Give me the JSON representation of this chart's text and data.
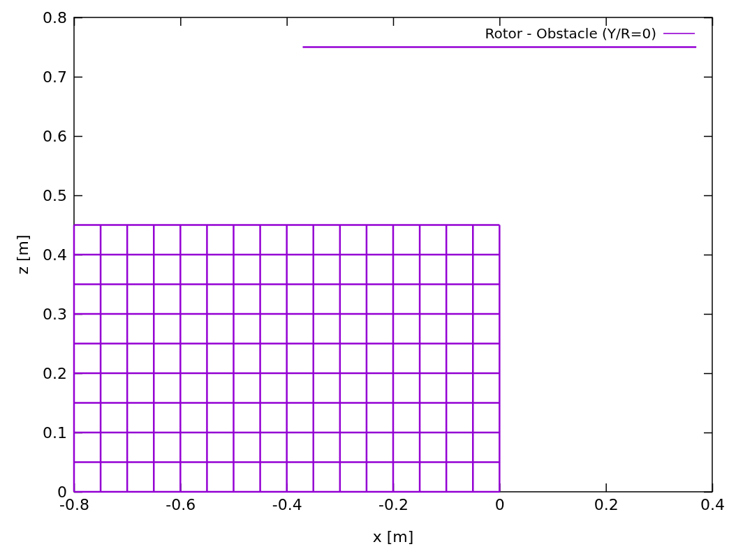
{
  "chart_data": {
    "type": "line",
    "xlabel": "x [m]",
    "ylabel": "z [m]",
    "xlim": [
      -0.8,
      0.4
    ],
    "xticks": [
      -0.8,
      -0.6,
      -0.4,
      -0.2,
      0,
      0.2,
      0.4
    ],
    "ylim": [
      0,
      0.8
    ],
    "yticks": [
      0,
      0.1,
      0.2,
      0.3,
      0.4,
      0.5,
      0.6,
      0.7,
      0.8
    ],
    "legend": "top right",
    "marker": "none",
    "line_style": "solid",
    "grid": false,
    "series": [
      {
        "name": "Rotor - Obstacle (Y/R=0)",
        "color": "#9400d3",
        "x": [
          -0.37,
          0.37
        ],
        "values": [
          0.75,
          0.75
        ]
      },
      {
        "color": "#9400d3",
        "x": [
          -0.8,
          0
        ],
        "values": [
          0,
          0
        ]
      },
      {
        "color": "#9400d3",
        "x": [
          -0.8,
          0
        ],
        "values": [
          0.05,
          0.05
        ]
      },
      {
        "color": "#9400d3",
        "x": [
          -0.8,
          0
        ],
        "values": [
          0.1,
          0.1
        ]
      },
      {
        "color": "#9400d3",
        "x": [
          -0.8,
          0
        ],
        "values": [
          0.15,
          0.15
        ]
      },
      {
        "color": "#9400d3",
        "x": [
          -0.8,
          0
        ],
        "values": [
          0.2,
          0.2
        ]
      },
      {
        "color": "#9400d3",
        "x": [
          -0.8,
          0
        ],
        "values": [
          0.25,
          0.25
        ]
      },
      {
        "color": "#9400d3",
        "x": [
          -0.8,
          0
        ],
        "values": [
          0.3,
          0.3
        ]
      },
      {
        "color": "#9400d3",
        "x": [
          -0.8,
          0
        ],
        "values": [
          0.35,
          0.35
        ]
      },
      {
        "color": "#9400d3",
        "x": [
          -0.8,
          0
        ],
        "values": [
          0.4,
          0.4
        ]
      },
      {
        "color": "#9400d3",
        "x": [
          -0.8,
          0
        ],
        "values": [
          0.45,
          0.45
        ]
      },
      {
        "color": "#9400d3",
        "x": [
          -0.8,
          -0.8
        ],
        "values": [
          0,
          0.45
        ]
      },
      {
        "color": "#9400d3",
        "x": [
          -0.75,
          -0.75
        ],
        "values": [
          0,
          0.45
        ]
      },
      {
        "color": "#9400d3",
        "x": [
          -0.7,
          -0.7
        ],
        "values": [
          0,
          0.45
        ]
      },
      {
        "color": "#9400d3",
        "x": [
          -0.65,
          -0.65
        ],
        "values": [
          0,
          0.45
        ]
      },
      {
        "color": "#9400d3",
        "x": [
          -0.6,
          -0.6
        ],
        "values": [
          0,
          0.45
        ]
      },
      {
        "color": "#9400d3",
        "x": [
          -0.55,
          -0.55
        ],
        "values": [
          0,
          0.45
        ]
      },
      {
        "color": "#9400d3",
        "x": [
          -0.5,
          -0.5
        ],
        "values": [
          0,
          0.45
        ]
      },
      {
        "color": "#9400d3",
        "x": [
          -0.45,
          -0.45
        ],
        "values": [
          0,
          0.45
        ]
      },
      {
        "color": "#9400d3",
        "x": [
          -0.4,
          -0.4
        ],
        "values": [
          0,
          0.45
        ]
      },
      {
        "color": "#9400d3",
        "x": [
          -0.35,
          -0.35
        ],
        "values": [
          0,
          0.45
        ]
      },
      {
        "color": "#9400d3",
        "x": [
          -0.3,
          -0.3
        ],
        "values": [
          0,
          0.45
        ]
      },
      {
        "color": "#9400d3",
        "x": [
          -0.25,
          -0.25
        ],
        "values": [
          0,
          0.45
        ]
      },
      {
        "color": "#9400d3",
        "x": [
          -0.2,
          -0.2
        ],
        "values": [
          0,
          0.45
        ]
      },
      {
        "color": "#9400d3",
        "x": [
          -0.15,
          -0.15
        ],
        "values": [
          0,
          0.45
        ]
      },
      {
        "color": "#9400d3",
        "x": [
          -0.1,
          -0.1
        ],
        "values": [
          0,
          0.45
        ]
      },
      {
        "color": "#9400d3",
        "x": [
          -0.05,
          -0.05
        ],
        "values": [
          0,
          0.45
        ]
      },
      {
        "color": "#9400d3",
        "x": [
          0,
          0
        ],
        "values": [
          0,
          0.45
        ]
      }
    ]
  }
}
